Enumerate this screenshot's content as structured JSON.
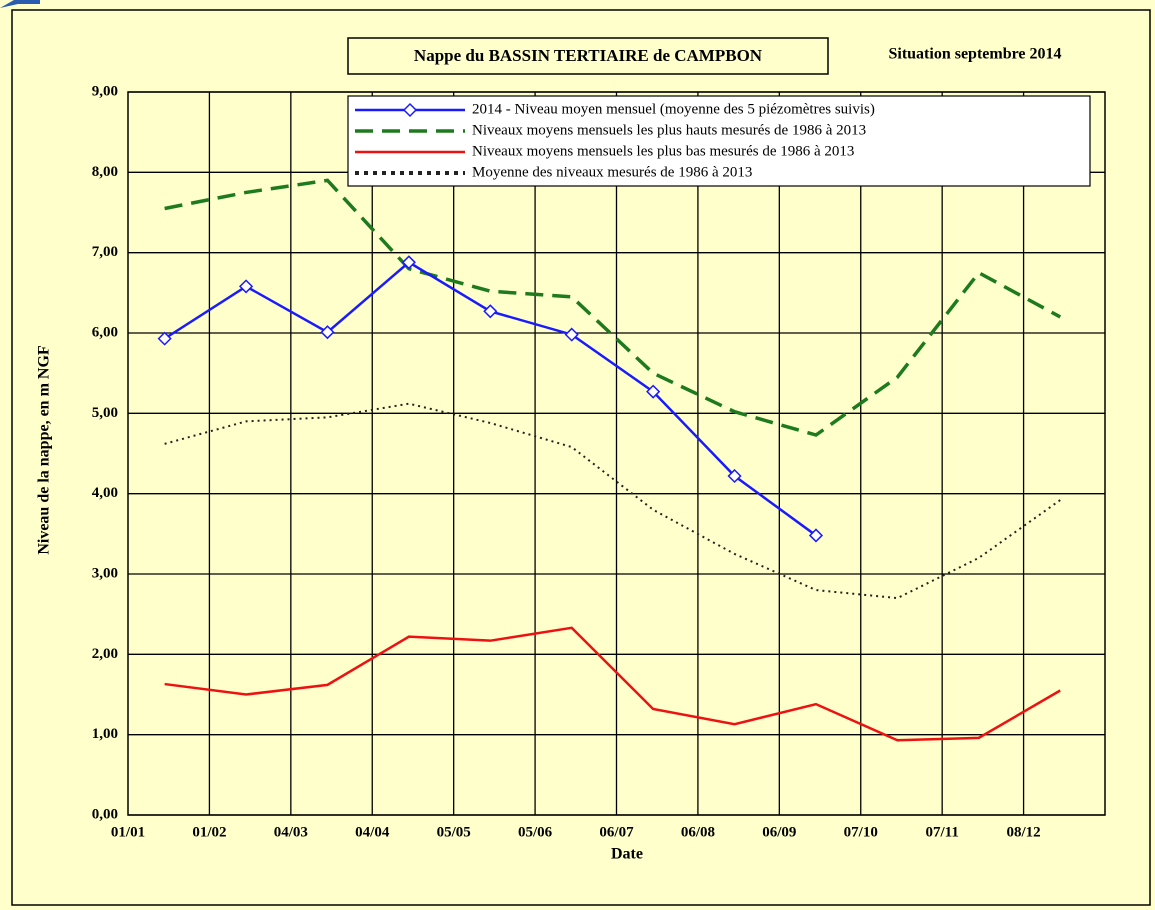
{
  "chart_data": {
    "type": "line",
    "title": "Nappe du BASSIN TERTIAIRE de CAMPBON",
    "subtitle": "Situation septembre 2014",
    "x_label": "Date",
    "y_label": "Niveau de la nappe, en m NGF",
    "categories": [
      "01/01",
      "01/02",
      "04/03",
      "04/04",
      "05/05",
      "05/06",
      "06/07",
      "06/08",
      "06/09",
      "07/10",
      "07/11",
      "08/12"
    ],
    "ylim": [
      0,
      9
    ],
    "yticks": [
      {
        "value": 0,
        "label": "0,00"
      },
      {
        "value": 1,
        "label": "1,00"
      },
      {
        "value": 2,
        "label": "2,00"
      },
      {
        "value": 3,
        "label": "3,00"
      },
      {
        "value": 4,
        "label": "4,00"
      },
      {
        "value": 5,
        "label": "5,00"
      },
      {
        "value": 6,
        "label": "6,00"
      },
      {
        "value": 7,
        "label": "7,00"
      },
      {
        "value": 8,
        "label": "8,00"
      },
      {
        "value": 9,
        "label": "9,00"
      }
    ],
    "grid": true,
    "series": [
      {
        "name": "2014 - Niveau moyen mensuel (moyenne des 5 piézomètres suivis)",
        "color": "#1a1aff",
        "line_style": "solid",
        "marker": "diamond",
        "values": [
          5.93,
          6.58,
          6.01,
          6.88,
          6.27,
          5.98,
          5.27,
          4.22,
          3.48,
          null,
          null,
          null
        ]
      },
      {
        "name": "Niveaux moyens mensuels les plus hauts mesurés de 1986 à 2013",
        "color": "#1e7a1e",
        "line_style": "dashed",
        "values": [
          7.55,
          7.75,
          7.9,
          6.8,
          6.52,
          6.45,
          5.5,
          5.02,
          4.73,
          5.45,
          6.75,
          6.2
        ]
      },
      {
        "name": "Niveaux moyens mensuels les plus bas mesurés de 1986 à 2013",
        "color": "#ee1111",
        "line_style": "solid",
        "values": [
          1.63,
          1.5,
          1.62,
          2.22,
          2.17,
          2.33,
          1.32,
          1.13,
          1.38,
          0.93,
          0.96,
          1.55
        ]
      },
      {
        "name": "Moyenne des niveaux mesurés de 1986 à 2013",
        "color": "#222222",
        "line_style": "dotted",
        "values": [
          4.62,
          4.9,
          4.95,
          5.12,
          4.88,
          4.58,
          3.8,
          3.25,
          2.8,
          2.7,
          3.2,
          3.92
        ]
      }
    ]
  }
}
